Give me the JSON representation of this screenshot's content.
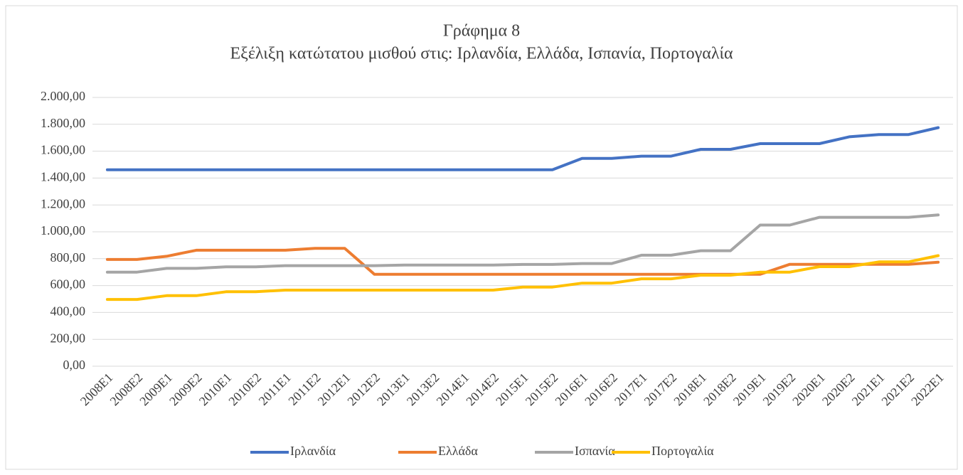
{
  "chart_data": {
    "type": "line",
    "title": "Γράφημα 8",
    "subtitle": "Εξέλιξη κατώτατου μισθού στις: Ιρλανδία, Ελλάδα, Ισπανία, Πορτογαλία",
    "categories": [
      "2008E1",
      "2008E2",
      "2009E1",
      "2009E2",
      "2010E1",
      "2010E2",
      "2011E1",
      "2011E2",
      "2012E1",
      "2012E2",
      "2013E1",
      "2013E2",
      "2014E1",
      "2014E2",
      "2015E1",
      "2015E2",
      "2016E1",
      "2016E2",
      "2017E1",
      "2017E2",
      "2018E1",
      "2018E2",
      "2019E1",
      "2019E2",
      "2020E1",
      "2020E2",
      "2021E1",
      "2021E2",
      "2022E1"
    ],
    "series": [
      {
        "name": "Ιρλανδία",
        "color": "#4472c4",
        "values": [
          1462,
          1462,
          1462,
          1462,
          1462,
          1462,
          1462,
          1462,
          1462,
          1462,
          1462,
          1462,
          1462,
          1462,
          1462,
          1462,
          1546,
          1546,
          1563,
          1563,
          1614,
          1614,
          1656,
          1656,
          1656,
          1707,
          1724,
          1724,
          1775
        ]
      },
      {
        "name": "Ελλάδα",
        "color": "#ed7d31",
        "values": [
          794,
          794,
          818,
          863,
          863,
          863,
          863,
          877,
          877,
          684,
          684,
          684,
          684,
          684,
          684,
          684,
          684,
          684,
          684,
          684,
          684,
          684,
          684,
          758,
          758,
          758,
          758,
          758,
          774
        ]
      },
      {
        "name": "Ισπανία",
        "color": "#a5a5a5",
        "values": [
          700,
          700,
          728,
          728,
          739,
          739,
          748,
          748,
          748,
          748,
          753,
          753,
          753,
          753,
          757,
          757,
          764,
          764,
          826,
          826,
          859,
          859,
          1050,
          1050,
          1108,
          1108,
          1108,
          1108,
          1126
        ]
      },
      {
        "name": "Πορτογαλία",
        "color": "#ffc000",
        "values": [
          497,
          497,
          525,
          525,
          554,
          554,
          566,
          566,
          566,
          566,
          566,
          566,
          566,
          566,
          589,
          589,
          618,
          618,
          650,
          650,
          677,
          677,
          700,
          700,
          741,
          741,
          776,
          776,
          823
        ]
      }
    ],
    "ylim": [
      0,
      2000
    ],
    "yticks": [
      {
        "value": 0,
        "label": "0,00"
      },
      {
        "value": 200,
        "label": "200,00"
      },
      {
        "value": 400,
        "label": "400,00"
      },
      {
        "value": 600,
        "label": "600,00"
      },
      {
        "value": 800,
        "label": "800,00"
      },
      {
        "value": 1000,
        "label": "1.000,00"
      },
      {
        "value": 1200,
        "label": "1.200,00"
      },
      {
        "value": 1400,
        "label": "1.400,00"
      },
      {
        "value": 1600,
        "label": "1.600,00"
      },
      {
        "value": 1800,
        "label": "1.800,00"
      },
      {
        "value": 2000,
        "label": "2.000,00"
      }
    ],
    "grid": true,
    "legend": "bottom"
  }
}
